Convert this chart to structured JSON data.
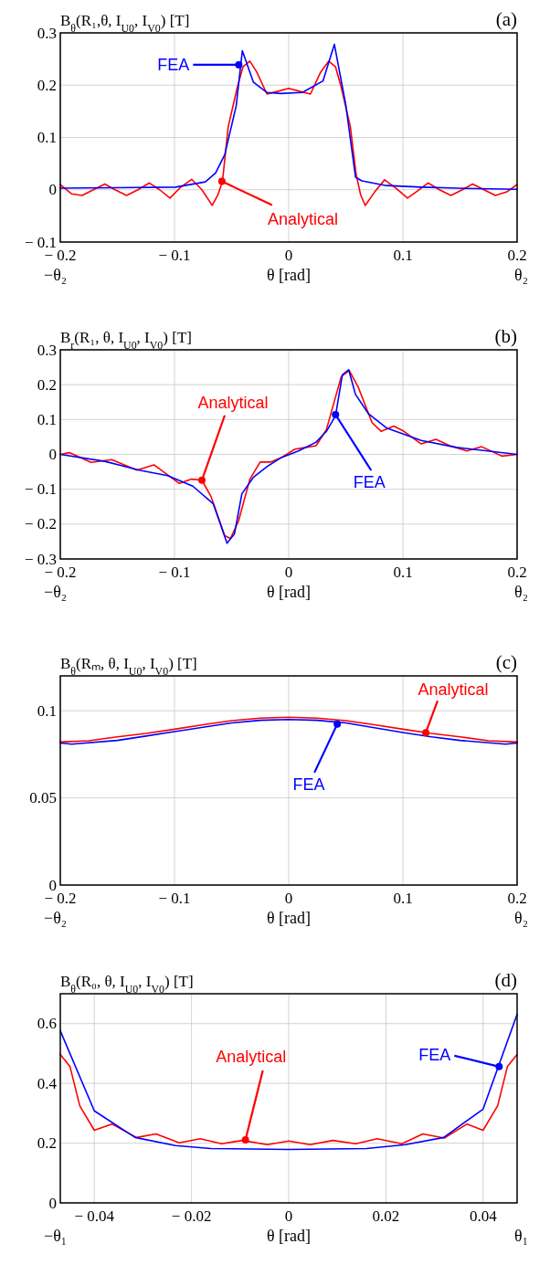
{
  "chart_data": [
    {
      "type": "line",
      "title": "(a)",
      "ylabel": "B$_{θ}$(R₁,θ, I$_{U0}$, I$_{V0}$) [T]",
      "xlabel": "θ [rad]",
      "xlim": [
        -0.2,
        0.2
      ],
      "ylim": [
        -0.1,
        0.3
      ],
      "xticks": [
        {
          "value": -0.2,
          "label": "− 0.2"
        },
        {
          "value": -0.1,
          "label": "− 0.1"
        },
        0,
        0.1,
        0.2
      ],
      "yticks": [
        {
          "value": -0.1,
          "label": "− 0.1"
        },
        0,
        0.1,
        0.2,
        0.3
      ],
      "grid": true,
      "series": [
        {
          "color": "#ff0000",
          "x": [
            -0.2,
            -0.19,
            -0.181,
            -0.171,
            -0.161,
            -0.152,
            -0.142,
            -0.132,
            -0.122,
            -0.113,
            -0.104,
            -0.095,
            -0.085,
            -0.076,
            -0.067,
            -0.062,
            -0.058,
            -0.053,
            -0.045,
            -0.04,
            -0.034,
            -0.028,
            -0.019,
            -0.01,
            0,
            0.01,
            0.019,
            0.028,
            0.035,
            0.041,
            0.046,
            0.054,
            0.059,
            0.063,
            0.067,
            0.075,
            0.084,
            0.094,
            0.104,
            0.113,
            0.122,
            0.132,
            0.142,
            0.152,
            0.161,
            0.171,
            0.181,
            0.191,
            0.2
          ],
          "values": [
            0.01,
            -0.008,
            -0.011,
            0,
            0.011,
            0,
            -0.011,
            0,
            0.013,
            0,
            -0.016,
            0.004,
            0.02,
            0,
            -0.03,
            -0.01,
            0.016,
            0.12,
            0.196,
            0.235,
            0.246,
            0.225,
            0.183,
            0.188,
            0.194,
            0.188,
            0.183,
            0.225,
            0.246,
            0.235,
            0.196,
            0.12,
            0.03,
            -0.01,
            -0.03,
            -0.005,
            0.019,
            0.003,
            -0.016,
            -0.002,
            0.013,
            0,
            -0.011,
            0,
            0.011,
            0,
            -0.011,
            -0.004,
            0.01
          ]
        },
        {
          "color": "#0000ff",
          "x": [
            -0.2,
            -0.15,
            -0.099,
            -0.081,
            -0.073,
            -0.064,
            -0.056,
            -0.046,
            -0.0406,
            -0.031,
            -0.019,
            -0.007,
            0.012,
            0.03,
            0.04,
            0.05,
            0.0585,
            0.064,
            0.0855,
            0.116,
            0.147,
            0.2
          ],
          "values": [
            0.003,
            0.004,
            0.005,
            0.012,
            0.015,
            0.032,
            0.067,
            0.16,
            0.266,
            0.206,
            0.186,
            0.184,
            0.186,
            0.208,
            0.278,
            0.162,
            0.024,
            0.017,
            0.008,
            0.005,
            0.003,
            0.001
          ]
        }
      ],
      "annotations": [
        {
          "text": "Analytical",
          "x": -0.0585,
          "y": 0.016
        },
        {
          "text": "FEA",
          "x": -0.0437,
          "y": 0.239
        },
        "−θ₂",
        "θ₂"
      ]
    },
    {
      "type": "line",
      "title": "(b)",
      "ylabel": "B$_{r}$(R₁, θ, I$_{U0}$, I$_{V0}$) [T]",
      "xlabel": "θ [rad]",
      "xlim": [
        -0.2,
        0.2
      ],
      "ylim": [
        -0.3,
        0.3
      ],
      "xticks": [
        {
          "value": -0.2,
          "label": "− 0.2"
        },
        {
          "value": -0.1,
          "label": "− 0.1"
        },
        0,
        0.1,
        0.2
      ],
      "yticks": [
        {
          "value": -0.3,
          "label": "− 0.3"
        },
        {
          "value": -0.2,
          "label": "− 0.2"
        },
        {
          "value": -0.1,
          "label": "− 0.1"
        },
        0,
        0.1,
        0.2,
        0.3
      ],
      "grid": true,
      "series": [
        {
          "color": "#ff0000",
          "x": [
            -0.2,
            -0.192,
            -0.173,
            -0.155,
            -0.133,
            -0.118,
            -0.096,
            -0.085,
            -0.076,
            -0.068,
            -0.056,
            -0.051,
            -0.044,
            -0.034,
            -0.025,
            -0.016,
            -0.007,
            0.0055,
            0.015,
            0.024,
            0.033,
            0.046,
            0.053,
            0.061,
            0.073,
            0.081,
            0.092,
            0.101,
            0.116,
            0.129,
            0.141,
            0.156,
            0.169,
            0.187,
            0.2
          ],
          "values": [
            0,
            0.005,
            -0.023,
            -0.015,
            -0.045,
            -0.03,
            -0.083,
            -0.071,
            -0.074,
            -0.121,
            -0.233,
            -0.241,
            -0.192,
            -0.071,
            -0.022,
            -0.022,
            -0.01,
            0.015,
            0.02,
            0.025,
            0.071,
            0.223,
            0.241,
            0.192,
            0.091,
            0.066,
            0.081,
            0.066,
            0.03,
            0.043,
            0.025,
            0.01,
            0.022,
            -0.005,
            0
          ]
        },
        {
          "color": "#0000ff",
          "x": [
            -0.2,
            -0.161,
            -0.13,
            -0.106,
            -0.084,
            -0.066,
            -0.054,
            -0.0475,
            -0.041,
            -0.031,
            -0.019,
            -0.007,
            0.0085,
            0.024,
            0.033,
            0.041,
            0.047,
            0.0525,
            0.0585,
            0.07,
            0.0855,
            0.116,
            0.147,
            0.2
          ],
          "values": [
            0,
            -0.02,
            -0.046,
            -0.061,
            -0.091,
            -0.142,
            -0.255,
            -0.228,
            -0.113,
            -0.066,
            -0.035,
            -0.01,
            0.01,
            0.035,
            0.066,
            0.111,
            0.228,
            0.243,
            0.172,
            0.116,
            0.076,
            0.04,
            0.02,
            0
          ]
        }
      ],
      "annotations": [
        {
          "text": "Analytical",
          "x": -0.076,
          "y": -0.074
        },
        {
          "text": "FEA",
          "x": 0.041,
          "y": 0.114
        },
        "−θ₂",
        "θ₂"
      ]
    },
    {
      "type": "line",
      "title": "(c)",
      "ylabel": "B$_{θ}$(Rₘ, θ, I$_{U0}$, I$_{V0}$) [T]",
      "xlabel": "θ [rad]",
      "xlim": [
        -0.2,
        0.2
      ],
      "ylim": [
        0,
        0.12
      ],
      "xticks": [
        {
          "value": -0.2,
          "label": "− 0.2"
        },
        {
          "value": -0.1,
          "label": "− 0.1"
        },
        0,
        0.1,
        0.2
      ],
      "yticks": [
        0,
        0.05,
        0.1
      ],
      "grid": true,
      "series": [
        {
          "color": "#ff0000",
          "x": [
            -0.2,
            -0.175,
            -0.15,
            -0.125,
            -0.1,
            -0.075,
            -0.05,
            -0.025,
            0,
            0.025,
            0.05,
            0.075,
            0.1,
            0.125,
            0.15,
            0.175,
            0.2
          ],
          "values": [
            0.0821,
            0.0828,
            0.085,
            0.087,
            0.0894,
            0.092,
            0.0943,
            0.0958,
            0.0963,
            0.0958,
            0.0943,
            0.092,
            0.0894,
            0.087,
            0.085,
            0.0828,
            0.0821
          ]
        },
        {
          "color": "#0000ff",
          "x": [
            -0.2,
            -0.19,
            -0.15,
            -0.125,
            -0.1,
            -0.075,
            -0.05,
            -0.025,
            0,
            0.025,
            0.05,
            0.075,
            0.1,
            0.125,
            0.15,
            0.19,
            0.2
          ],
          "values": [
            0.0815,
            0.0808,
            0.083,
            0.0855,
            0.088,
            0.0905,
            0.093,
            0.0945,
            0.095,
            0.0945,
            0.093,
            0.0903,
            0.0875,
            0.085,
            0.083,
            0.0808,
            0.0815
          ]
        }
      ],
      "annotations": [
        {
          "text": "Analytical",
          "x": 0.12,
          "y": 0.0874
        },
        {
          "text": "FEA",
          "x": 0.0425,
          "y": 0.0923
        },
        "−θ₂",
        "θ₂"
      ]
    },
    {
      "type": "line",
      "title": "(d)",
      "ylabel": "B$_{θ}$(R₀, θ, I$_{U0}$, I$_{V0}$) [T]",
      "xlabel": "θ [rad]",
      "xlim": [
        -0.047,
        0.047
      ],
      "ylim": [
        0,
        0.7
      ],
      "xticks": [
        {
          "value": -0.04,
          "label": "− 0.04"
        },
        {
          "value": -0.02,
          "label": "− 0.02"
        },
        0,
        0.02,
        0.04
      ],
      "yticks": [
        0,
        0.2,
        0.4,
        0.6
      ],
      "grid": true,
      "series": [
        {
          "color": "#ff0000",
          "x": [
            -0.047,
            -0.045,
            -0.043,
            -0.04,
            -0.0364,
            -0.0313,
            -0.0273,
            -0.0225,
            -0.0182,
            -0.0138,
            -0.0095,
            -0.0044,
            0,
            0.0044,
            0.0091,
            0.0138,
            0.0182,
            0.0233,
            0.0276,
            0.032,
            0.0367,
            0.04,
            0.043,
            0.045,
            0.047
          ],
          "values": [
            0.497,
            0.456,
            0.325,
            0.243,
            0.264,
            0.219,
            0.231,
            0.201,
            0.215,
            0.198,
            0.209,
            0.195,
            0.207,
            0.195,
            0.209,
            0.198,
            0.215,
            0.198,
            0.231,
            0.217,
            0.264,
            0.243,
            0.325,
            0.456,
            0.497
          ]
        },
        {
          "color": "#0000ff",
          "x": [
            -0.047,
            -0.04,
            -0.0316,
            -0.0233,
            -0.016,
            0,
            0.016,
            0.024,
            0.0319,
            0.04,
            0.047
          ],
          "values": [
            0.576,
            0.308,
            0.219,
            0.192,
            0.182,
            0.179,
            0.182,
            0.195,
            0.219,
            0.314,
            0.631
          ]
        }
      ],
      "annotations": [
        {
          "text": "Analytical",
          "x": -0.0089,
          "y": 0.211
        },
        {
          "text": "FEA",
          "x": 0.0433,
          "y": 0.456
        },
        "−θ₁",
        "θ₁"
      ]
    }
  ]
}
